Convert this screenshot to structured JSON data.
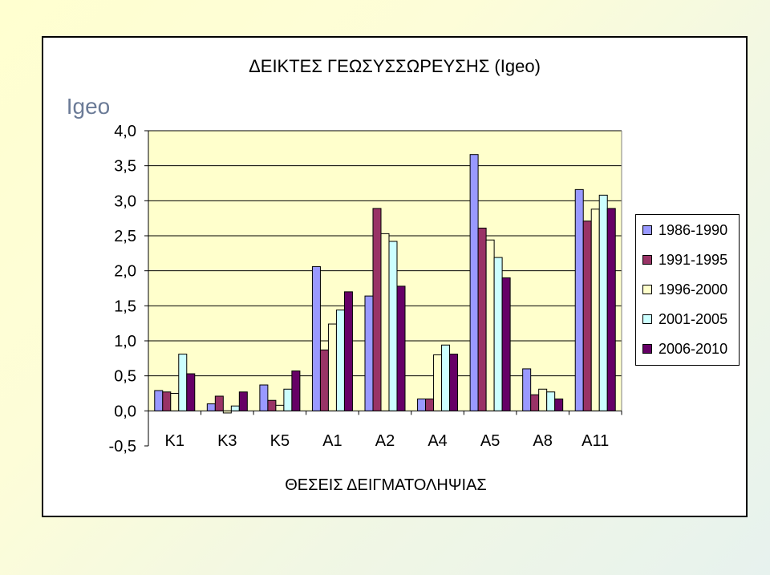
{
  "chart_data": {
    "type": "bar",
    "title": "ΔΕΙΚΤΕΣ ΓΕΩΣΥΣΣΩΡΕΥΣΗΣ (Igeo)",
    "ylabel": "Igeo",
    "xlabel": "ΘΕΣΕΙΣ ΔΕΙΓΜΑΤΟΛΗΨΙΑΣ",
    "categories": [
      "K1",
      "K3",
      "K5",
      "A1",
      "A2",
      "A4",
      "A5",
      "A8",
      "A11"
    ],
    "ylim": [
      -0.5,
      4.0
    ],
    "yticks": [
      "4,0",
      "3,5",
      "3,0",
      "2,5",
      "2,0",
      "1,5",
      "1,0",
      "0,5",
      "0,0",
      "-0,5"
    ],
    "ytick_values": [
      4.0,
      3.5,
      3.0,
      2.5,
      2.0,
      1.5,
      1.0,
      0.5,
      0.0,
      -0.5
    ],
    "legend_position": "right",
    "grid": true,
    "plot_background": "#ffffcc",
    "series": [
      {
        "name": "1986-1990",
        "color": "#9999ff",
        "values": [
          0.29,
          0.1,
          0.37,
          2.06,
          1.64,
          0.17,
          3.66,
          0.6,
          3.16
        ]
      },
      {
        "name": "1991-1995",
        "color": "#993366",
        "values": [
          0.27,
          0.21,
          0.15,
          0.87,
          2.89,
          0.17,
          2.61,
          0.23,
          2.71
        ]
      },
      {
        "name": "1996-2000",
        "color": "#ffffcc",
        "values": [
          0.25,
          -0.03,
          0.08,
          1.24,
          2.53,
          0.8,
          2.44,
          0.31,
          2.88
        ]
      },
      {
        "name": "2001-2005",
        "color": "#ccffff",
        "values": [
          0.81,
          0.07,
          0.31,
          1.44,
          2.42,
          0.94,
          2.19,
          0.27,
          3.08
        ]
      },
      {
        "name": "2006-2010",
        "color": "#660066",
        "values": [
          0.53,
          0.27,
          0.57,
          1.7,
          1.78,
          0.81,
          1.9,
          0.17,
          2.89
        ]
      }
    ]
  }
}
